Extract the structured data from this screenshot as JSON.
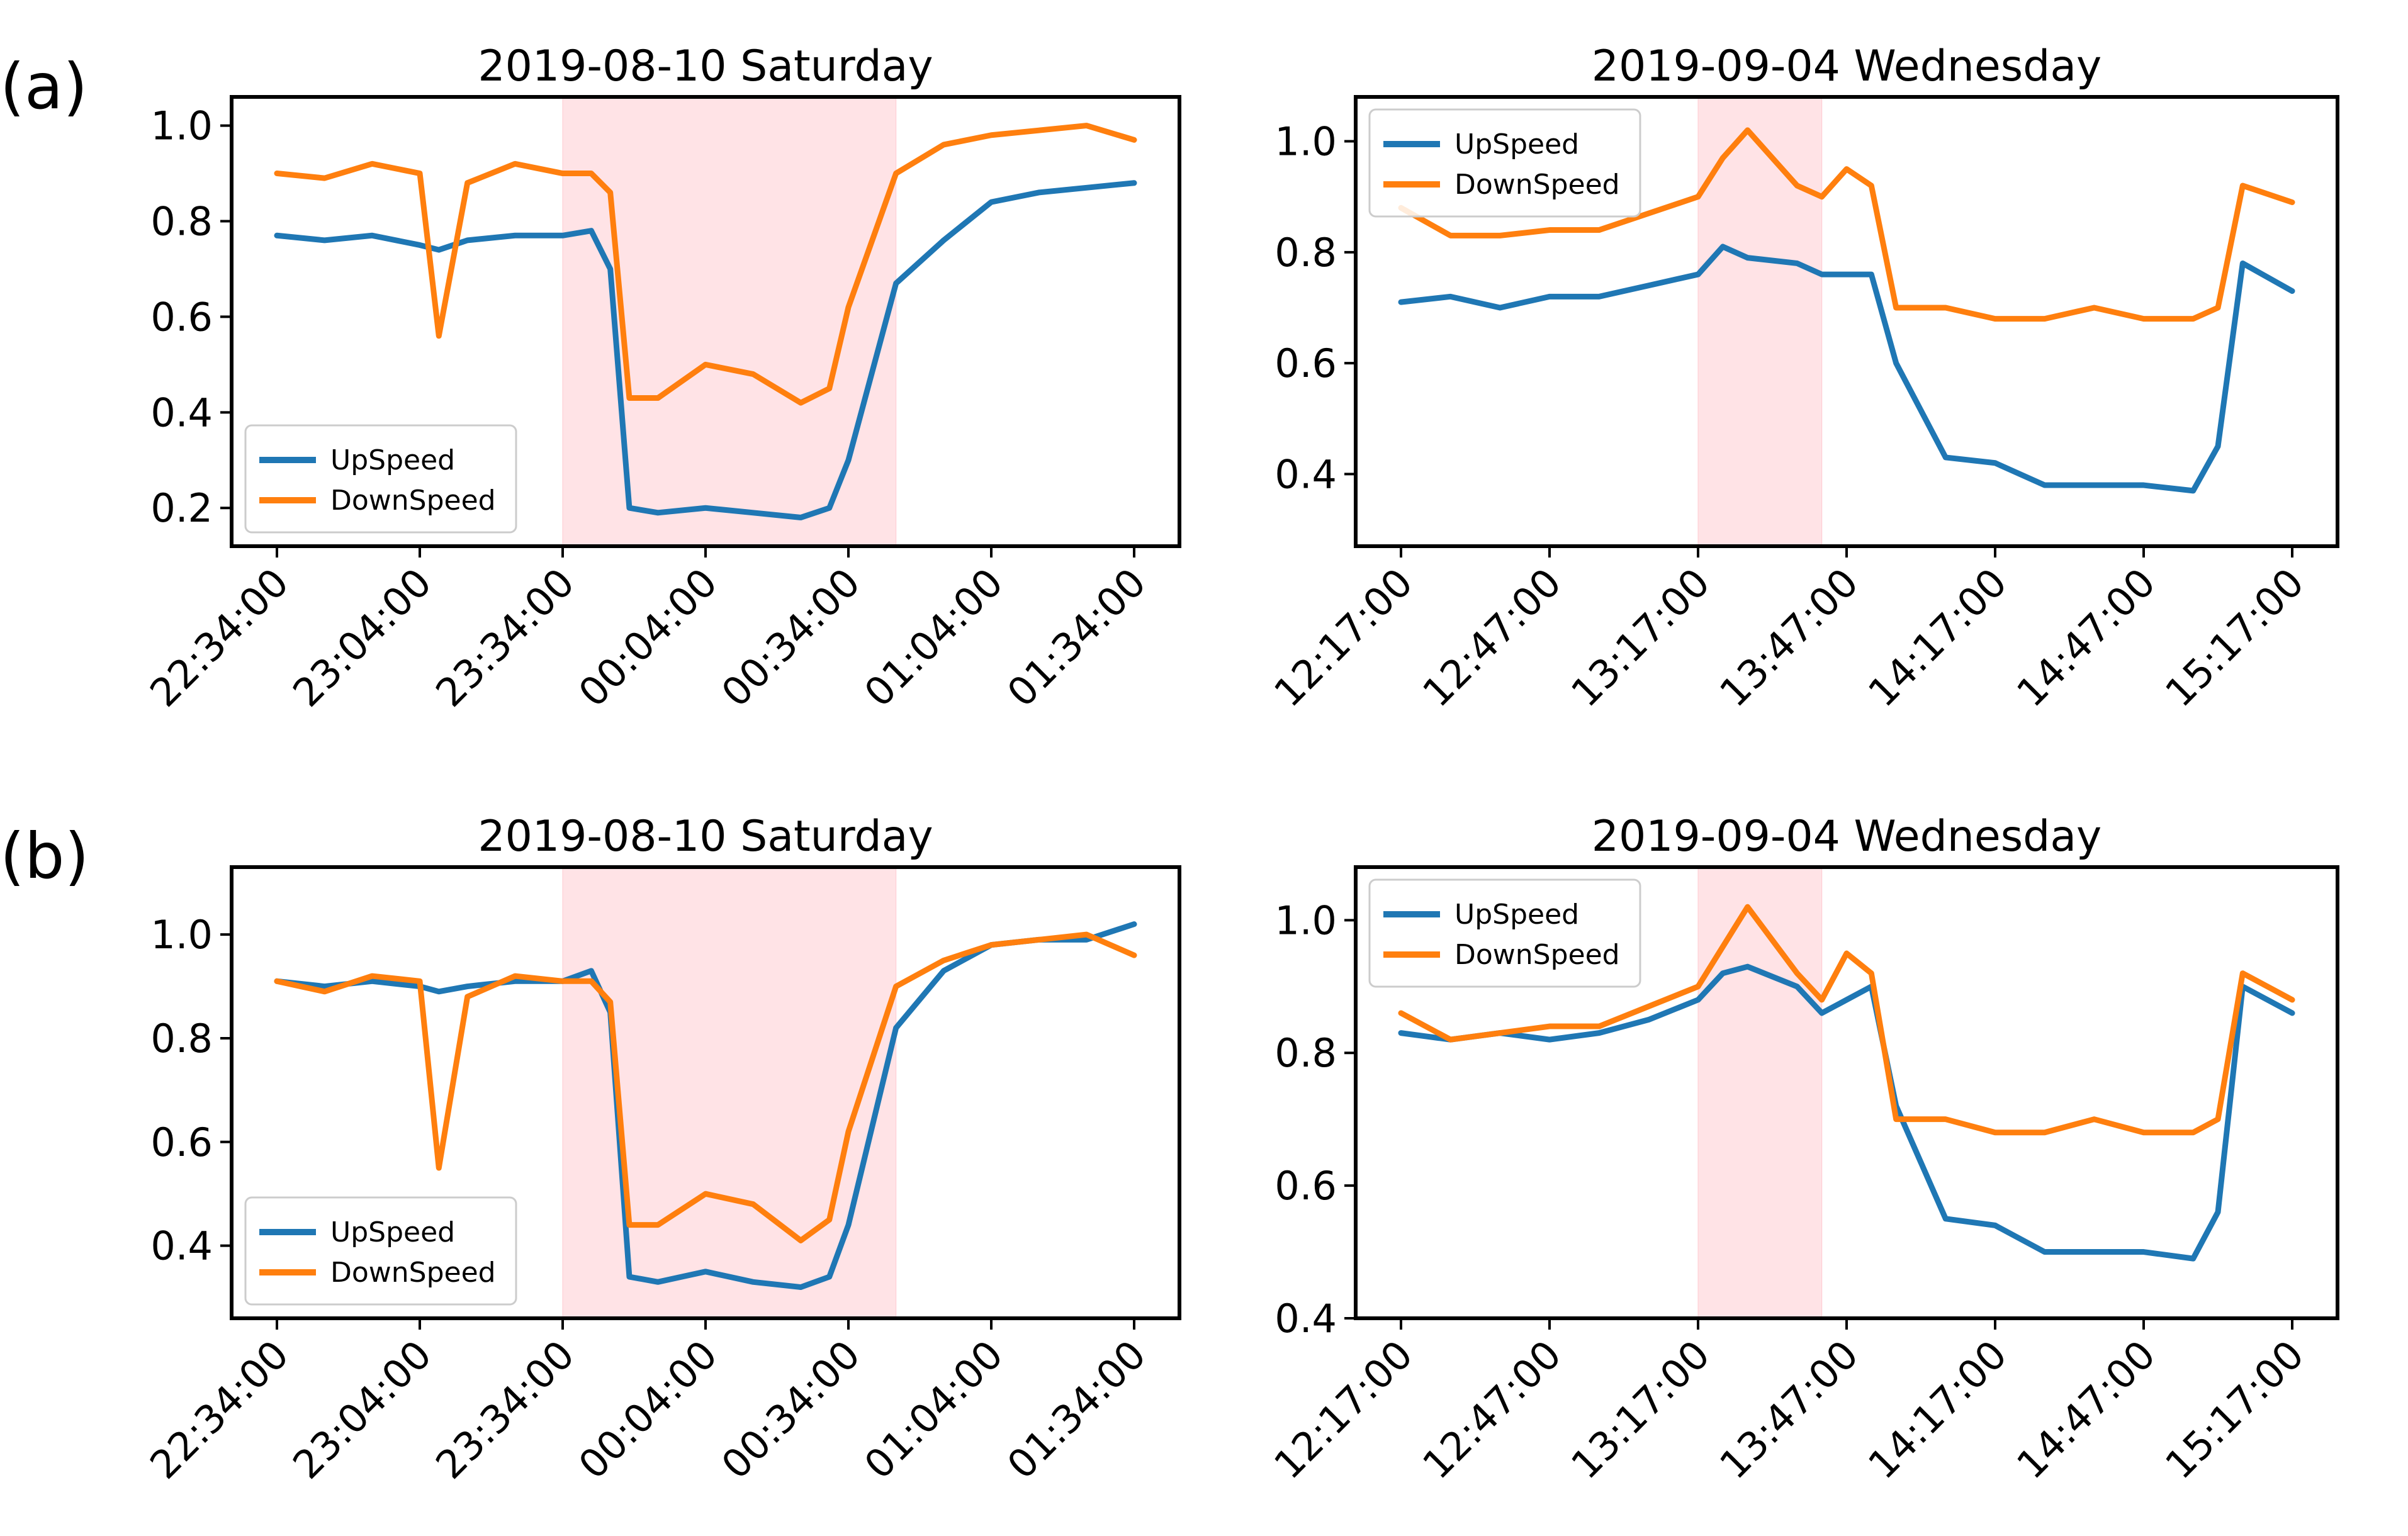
{
  "row_labels": [
    "(a)",
    "(b)"
  ],
  "colors": {
    "up": "#1f77b4",
    "down": "#ff7f0e",
    "shade": "#ffc0c8"
  },
  "chart_data": [
    {
      "id": "a-sat",
      "type": "line",
      "title": "2019-08-10 Saturday",
      "x_ticks": [
        "22:34:00",
        "23:04:00",
        "23:34:00",
        "00:04:00",
        "00:34:00",
        "01:04:00",
        "01:34:00"
      ],
      "x": [
        "22:34",
        "22:44",
        "22:54",
        "23:04",
        "23:08",
        "23:14",
        "23:24",
        "23:34",
        "23:40",
        "23:44",
        "23:48",
        "23:54",
        "24:04",
        "24:14",
        "24:24",
        "24:30",
        "24:34",
        "24:44",
        "24:54",
        "25:04",
        "25:14",
        "25:24",
        "25:34"
      ],
      "ylim": [
        0.12,
        1.06
      ],
      "y_ticks": [
        0.2,
        0.4,
        0.6,
        0.8,
        1.0
      ],
      "shaded_range": [
        "23:34",
        "24:44"
      ],
      "legend_location": "lower left",
      "series": [
        {
          "name": "UpSpeed",
          "values": [
            0.77,
            0.76,
            0.77,
            0.75,
            0.74,
            0.76,
            0.77,
            0.77,
            0.78,
            0.7,
            0.2,
            0.19,
            0.2,
            0.19,
            0.18,
            0.2,
            0.3,
            0.67,
            0.76,
            0.84,
            0.86,
            0.87,
            0.88
          ]
        },
        {
          "name": "DownSpeed",
          "values": [
            0.9,
            0.89,
            0.92,
            0.9,
            0.56,
            0.88,
            0.92,
            0.9,
            0.9,
            0.86,
            0.43,
            0.43,
            0.5,
            0.48,
            0.42,
            0.45,
            0.62,
            0.9,
            0.96,
            0.98,
            0.99,
            1.0,
            0.97
          ]
        }
      ]
    },
    {
      "id": "a-wed",
      "type": "line",
      "title": "2019-09-04 Wednesday",
      "x_ticks": [
        "12:17:00",
        "12:47:00",
        "13:17:00",
        "13:47:00",
        "14:17:00",
        "14:47:00",
        "15:17:00"
      ],
      "x": [
        "12:17",
        "12:27",
        "12:37",
        "12:47",
        "12:57",
        "13:07",
        "13:17",
        "13:22",
        "13:27",
        "13:37",
        "13:42",
        "13:47",
        "13:52",
        "13:57",
        "14:07",
        "14:17",
        "14:27",
        "14:37",
        "14:47",
        "14:57",
        "15:02",
        "15:07",
        "15:17"
      ],
      "ylim": [
        0.27,
        1.08
      ],
      "y_ticks": [
        0.4,
        0.6,
        0.8,
        1.0
      ],
      "shaded_range": [
        "13:17",
        "13:42"
      ],
      "legend_location": "upper left",
      "series": [
        {
          "name": "UpSpeed",
          "values": [
            0.71,
            0.72,
            0.7,
            0.72,
            0.72,
            0.74,
            0.76,
            0.81,
            0.79,
            0.78,
            0.76,
            0.76,
            0.76,
            0.6,
            0.43,
            0.42,
            0.38,
            0.38,
            0.38,
            0.37,
            0.45,
            0.78,
            0.73
          ]
        },
        {
          "name": "DownSpeed",
          "values": [
            0.88,
            0.83,
            0.83,
            0.84,
            0.84,
            0.87,
            0.9,
            0.97,
            1.02,
            0.92,
            0.9,
            0.95,
            0.92,
            0.7,
            0.7,
            0.68,
            0.68,
            0.7,
            0.68,
            0.68,
            0.7,
            0.92,
            0.89
          ]
        }
      ]
    },
    {
      "id": "b-sat",
      "type": "line",
      "title": "2019-08-10 Saturday",
      "x_ticks": [
        "22:34:00",
        "23:04:00",
        "23:34:00",
        "00:04:00",
        "00:34:00",
        "01:04:00",
        "01:34:00"
      ],
      "x": [
        "22:34",
        "22:44",
        "22:54",
        "23:04",
        "23:08",
        "23:14",
        "23:24",
        "23:34",
        "23:40",
        "23:44",
        "23:48",
        "23:54",
        "24:04",
        "24:14",
        "24:24",
        "24:30",
        "24:34",
        "24:44",
        "24:54",
        "25:04",
        "25:14",
        "25:24",
        "25:34"
      ],
      "ylim": [
        0.26,
        1.13
      ],
      "y_ticks": [
        0.4,
        0.6,
        0.8,
        1.0
      ],
      "shaded_range": [
        "23:34",
        "24:44"
      ],
      "legend_location": "lower left",
      "series": [
        {
          "name": "UpSpeed",
          "values": [
            0.91,
            0.9,
            0.91,
            0.9,
            0.89,
            0.9,
            0.91,
            0.91,
            0.93,
            0.85,
            0.34,
            0.33,
            0.35,
            0.33,
            0.32,
            0.34,
            0.44,
            0.82,
            0.93,
            0.98,
            0.99,
            0.99,
            1.02
          ]
        },
        {
          "name": "DownSpeed",
          "values": [
            0.91,
            0.89,
            0.92,
            0.91,
            0.55,
            0.88,
            0.92,
            0.91,
            0.91,
            0.87,
            0.44,
            0.44,
            0.5,
            0.48,
            0.41,
            0.45,
            0.62,
            0.9,
            0.95,
            0.98,
            0.99,
            1.0,
            0.96
          ]
        }
      ]
    },
    {
      "id": "b-wed",
      "type": "line",
      "title": "2019-09-04 Wednesday",
      "x_ticks": [
        "12:17:00",
        "12:47:00",
        "13:17:00",
        "13:47:00",
        "14:17:00",
        "14:47:00",
        "15:17:00"
      ],
      "x": [
        "12:17",
        "12:27",
        "12:37",
        "12:47",
        "12:57",
        "13:07",
        "13:17",
        "13:22",
        "13:27",
        "13:37",
        "13:42",
        "13:47",
        "13:52",
        "13:57",
        "14:07",
        "14:17",
        "14:27",
        "14:37",
        "14:47",
        "14:57",
        "15:02",
        "15:07",
        "15:17"
      ],
      "ylim": [
        0.4,
        1.08
      ],
      "y_ticks": [
        0.4,
        0.6,
        0.8,
        1.0
      ],
      "shaded_range": [
        "13:17",
        "13:42"
      ],
      "legend_location": "upper left",
      "series": [
        {
          "name": "UpSpeed",
          "values": [
            0.83,
            0.82,
            0.83,
            0.82,
            0.83,
            0.85,
            0.88,
            0.92,
            0.93,
            0.9,
            0.86,
            0.88,
            0.9,
            0.72,
            0.55,
            0.54,
            0.5,
            0.5,
            0.5,
            0.49,
            0.56,
            0.9,
            0.86
          ]
        },
        {
          "name": "DownSpeed",
          "values": [
            0.86,
            0.82,
            0.83,
            0.84,
            0.84,
            0.87,
            0.9,
            0.96,
            1.02,
            0.92,
            0.88,
            0.95,
            0.92,
            0.7,
            0.7,
            0.68,
            0.68,
            0.7,
            0.68,
            0.68,
            0.7,
            0.92,
            0.88
          ]
        }
      ]
    }
  ]
}
